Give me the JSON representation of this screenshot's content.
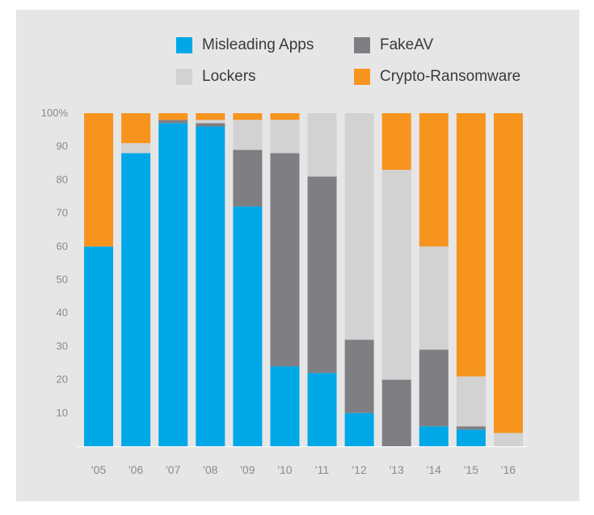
{
  "chart_data": {
    "type": "bar",
    "stacked": true,
    "categories": [
      "'05",
      "'06",
      "'07",
      "'08",
      "'09",
      "'10",
      "'11",
      "'12",
      "'13",
      "'14",
      "'15",
      "'16"
    ],
    "series": [
      {
        "name": "Misleading Apps",
        "color": "#00a8e8",
        "values": [
          60,
          88,
          97,
          96,
          72,
          24,
          22,
          10,
          0,
          6,
          5,
          0
        ]
      },
      {
        "name": "FakeAV",
        "color": "#7f7f83",
        "values": [
          0,
          0,
          1,
          1,
          17,
          64,
          59,
          22,
          20,
          23,
          1,
          0
        ]
      },
      {
        "name": "Lockers",
        "color": "#d2d2d3",
        "values": [
          0,
          3,
          0,
          1,
          9,
          10,
          19,
          68,
          63,
          31,
          15,
          4
        ]
      },
      {
        "name": "Crypto-Ransomware",
        "color": "#f7941d",
        "values": [
          40,
          9,
          2,
          2,
          2,
          2,
          0,
          0,
          17,
          40,
          79,
          96
        ]
      }
    ],
    "y_tick_labels": [
      "10",
      "20",
      "30",
      "40",
      "50",
      "60",
      "70",
      "80",
      "90",
      "100%"
    ],
    "y_ticks": [
      10,
      20,
      30,
      40,
      50,
      60,
      70,
      80,
      90,
      100
    ],
    "ylim": [
      0,
      100
    ],
    "legend_position": "top",
    "grid": false
  }
}
